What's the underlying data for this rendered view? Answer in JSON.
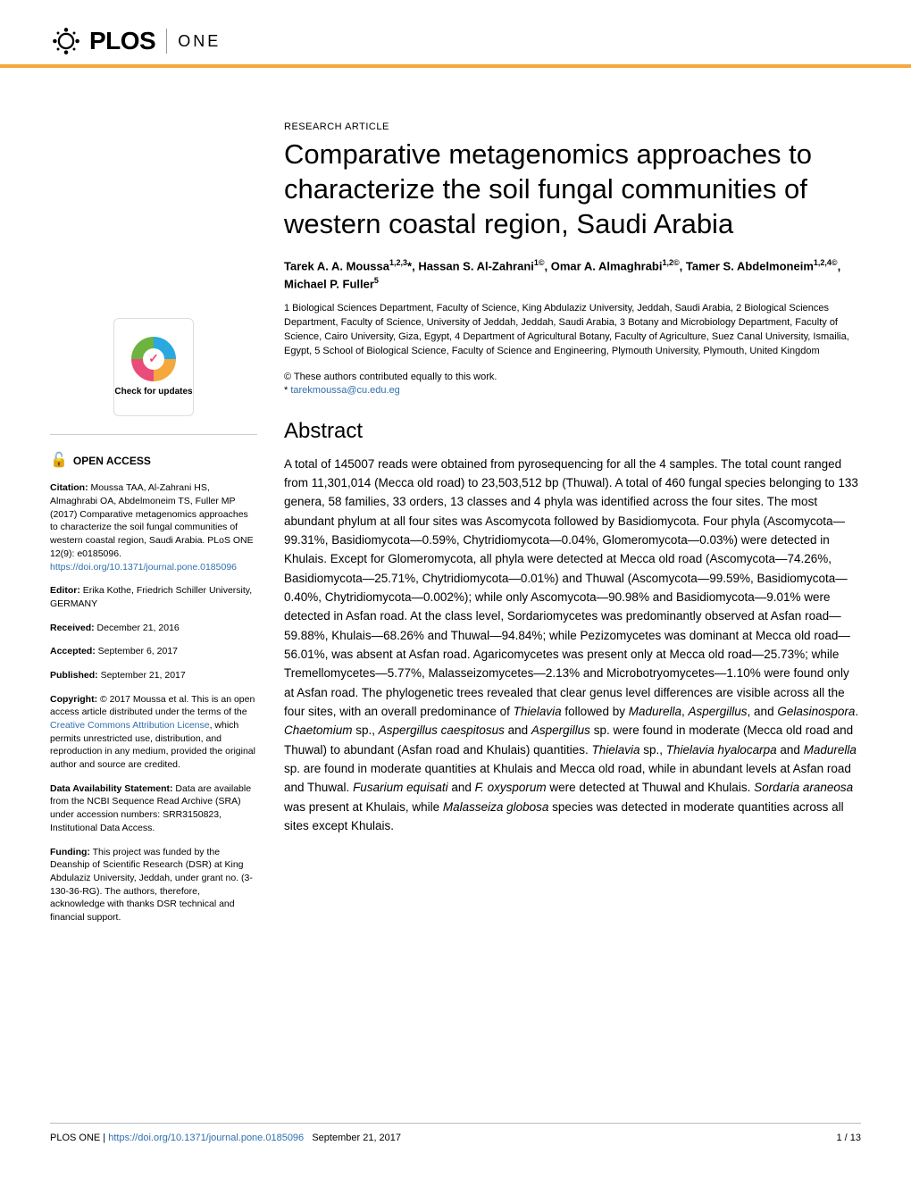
{
  "journal": {
    "logo_text": "PLOS",
    "sub_text": "ONE",
    "accent_color": "#f4a83d"
  },
  "article": {
    "type": "RESEARCH ARTICLE",
    "title": "Comparative metagenomics approaches to characterize the soil fungal communities of western coastal region, Saudi Arabia",
    "authors_html": "Tarek A. A. Moussa<sup>1,2,3</sup>*, Hassan S. Al-Zahrani<sup>1©</sup>, Omar A. Almaghrabi<sup>1,2©</sup>, Tamer S. Abdelmoneim<sup>1,2,4©</sup>, Michael P. Fuller<sup>5</sup>",
    "affiliations": "1 Biological Sciences Department, Faculty of Science, King Abdulaziz University, Jeddah, Saudi Arabia, 2 Biological Sciences Department, Faculty of Science, University of Jeddah, Jeddah, Saudi Arabia, 3 Botany and Microbiology Department, Faculty of Science, Cairo University, Giza, Egypt, 4 Department of Agricultural Botany, Faculty of Agriculture, Suez Canal University, Ismailia, Egypt, 5 School of Biological Science, Faculty of Science and Engineering, Plymouth University, Plymouth, United Kingdom",
    "contrib_note": "© These authors contributed equally to this work.",
    "correspond_prefix": "* ",
    "correspond_email": "tarekmoussa@cu.edu.eg",
    "abstract_heading": "Abstract",
    "abstract_html": "A total of 145007 reads were obtained from pyrosequencing for all the 4 samples. The total count ranged from 11,301,014 (Mecca old road) to 23,503,512 bp (Thuwal). A total of 460 fungal species belonging to 133 genera, 58 families, 33 orders, 13 classes and 4 phyla was identified across the four sites. The most abundant phylum at all four sites was Ascomycota followed by Basidiomycota. Four phyla (Ascomycota—99.31%, Basidiomycota—0.59%, Chytridiomycota—0.04%, Glomeromycota—0.03%) were detected in Khulais. Except for Glomeromycota, all phyla were detected at Mecca old road (Ascomycota—74.26%, Basidiomycota—25.71%, Chytridiomycota—0.01%) and Thuwal (Ascomycota—99.59%, Basidiomycota—0.40%, Chytridiomycota—0.002%); while only Ascomycota—90.98% and Basidiomycota—9.01% were detected in Asfan road. At the class level, Sordariomycetes was predominantly observed at Asfan road—59.88%, Khulais—68.26% and Thuwal—94.84%; while Pezizomycetes was dominant at Mecca old road—56.01%, was absent at Asfan road. Agaricomycetes was present only at Mecca old road—25.73%; while Tremellomycetes—5.77%, Malasseizomycetes—2.13% and Microbotryomycetes—1.10% were found only at Asfan road. The phylogenetic trees revealed that clear genus level differences are visible across all the four sites, with an overall predominance of <i>Thielavia</i> followed by <i>Madurella</i>, <i>Aspergillus</i>, and <i>Gelasinospora</i>. <i>Chaetomium</i> sp., <i>Aspergillus caespitosus</i> and <i>Aspergillus</i> sp. were found in moderate (Mecca old road and Thuwal) to abundant (Asfan road and Khulais) quantities. <i>Thielavia</i> sp., <i>Thielavia hyalocarpa</i> and <i>Madurella</i> sp. are found in moderate quantities at Khulais and Mecca old road, while in abundant levels at Asfan road and Thuwal. <i>Fusarium equisati</i> and <i>F. oxysporum</i> were detected at Thuwal and Khulais. <i>Sordaria araneosa</i> was present at Khulais, while <i>Malasseiza globosa</i> species was detected in moderate quantities across all sites except Khulais."
  },
  "sidebar": {
    "check_text": "Check for updates",
    "open_access": "OPEN ACCESS",
    "citation_label": "Citation:",
    "citation_text": " Moussa TAA, Al-Zahrani HS, Almaghrabi OA, Abdelmoneim TS, Fuller MP (2017) Comparative metagenomics approaches to characterize the soil fungal communities of western coastal region, Saudi Arabia. PLoS ONE 12(9): e0185096. ",
    "citation_link": "https://doi.org/10.1371/journal.pone.0185096",
    "editor_label": "Editor:",
    "editor_text": " Erika Kothe, Friedrich Schiller University, GERMANY",
    "received_label": "Received:",
    "received_text": " December 21, 2016",
    "accepted_label": "Accepted:",
    "accepted_text": " September 6, 2017",
    "published_label": "Published:",
    "published_text": " September 21, 2017",
    "copyright_label": "Copyright:",
    "copyright_text": " © 2017 Moussa et al. This is an open access article distributed under the terms of the ",
    "copyright_link": "Creative Commons Attribution License",
    "copyright_text2": ", which permits unrestricted use, distribution, and reproduction in any medium, provided the original author and source are credited.",
    "data_label": "Data Availability Statement:",
    "data_text": " Data are available from the NCBI Sequence Read Archive (SRA) under accession numbers: SRR3150823, Institutional Data Access.",
    "funding_label": "Funding:",
    "funding_text": " This project was funded by the Deanship of Scientific Research (DSR) at King Abdulaziz University, Jeddah, under grant no. (3-130-36-RG). The authors, therefore, acknowledge with thanks DSR technical and financial support."
  },
  "footer": {
    "journal": "PLOS ONE | ",
    "doi": "https://doi.org/10.1371/journal.pone.0185096",
    "date": "September 21, 2017",
    "page": "1 / 13"
  }
}
